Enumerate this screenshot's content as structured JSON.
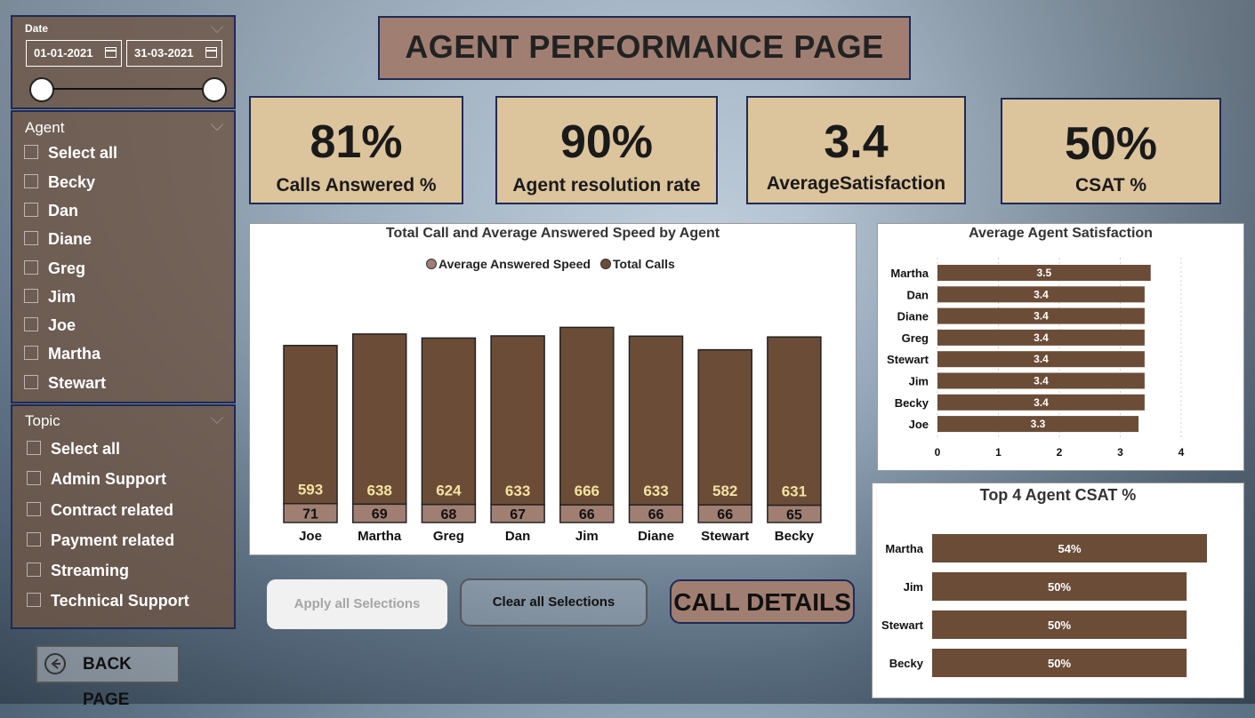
{
  "page": {
    "title": "AGENT PERFORMANCE PAGE"
  },
  "date_slicer": {
    "title": "Date",
    "start": "01-01-2021",
    "end": "31-03-2021"
  },
  "agent_slicer": {
    "title": "Agent",
    "options": [
      "Select all",
      "Becky",
      "Dan",
      "Diane",
      "Greg",
      "Jim",
      "Joe",
      "Martha",
      "Stewart"
    ]
  },
  "topic_slicer": {
    "title": "Topic",
    "options": [
      "Select all",
      "Admin Support",
      "Contract related",
      "Payment related",
      "Streaming",
      "Technical Support"
    ]
  },
  "kpis": [
    {
      "value": "81%",
      "label": "Calls Answered %"
    },
    {
      "value": "90%",
      "label": "Agent resolution rate"
    },
    {
      "value": "3.4",
      "label": "AverageSatisfaction"
    },
    {
      "value": "50%",
      "label": "CSAT %"
    }
  ],
  "buttons": {
    "apply": "Apply all Selections",
    "clear": "Clear all Selections",
    "details": "CALL DETAILS",
    "back": "BACK PAGE"
  },
  "colors": {
    "brown": "#6b4c37",
    "light_brown": "#a07f72",
    "kpi_bg": "#dcc49c",
    "label_yellow": "#f5e2a0",
    "border_navy": "#1e2a55"
  },
  "chart_data": [
    {
      "type": "bar",
      "title": "Total Call and Average Answered Speed by Agent",
      "categories": [
        "Joe",
        "Martha",
        "Greg",
        "Dan",
        "Jim",
        "Diane",
        "Stewart",
        "Becky"
      ],
      "series": [
        {
          "name": "Average Answered Speed",
          "values": [
            71,
            69,
            68,
            67,
            66,
            66,
            66,
            65
          ]
        },
        {
          "name": "Total Calls",
          "values": [
            593,
            638,
            624,
            633,
            666,
            633,
            582,
            631
          ]
        }
      ],
      "stacked": true,
      "legend": "top-center"
    },
    {
      "type": "bar",
      "orientation": "horizontal",
      "title": "Average Agent Satisfaction",
      "categories": [
        "Martha",
        "Dan",
        "Diane",
        "Greg",
        "Stewart",
        "Jim",
        "Becky",
        "Joe"
      ],
      "values": [
        3.5,
        3.4,
        3.4,
        3.4,
        3.4,
        3.4,
        3.4,
        3.3
      ],
      "xlim": [
        0,
        4
      ],
      "xticks": [
        0,
        1,
        2,
        3,
        4
      ],
      "grid": true
    },
    {
      "type": "bar",
      "orientation": "horizontal",
      "title": "Top 4 Agent CSAT %",
      "categories": [
        "Martha",
        "Jim",
        "Stewart",
        "Becky"
      ],
      "values": [
        54,
        50,
        50,
        50
      ],
      "value_labels": [
        "54%",
        "50%",
        "50%",
        "50%"
      ]
    }
  ]
}
